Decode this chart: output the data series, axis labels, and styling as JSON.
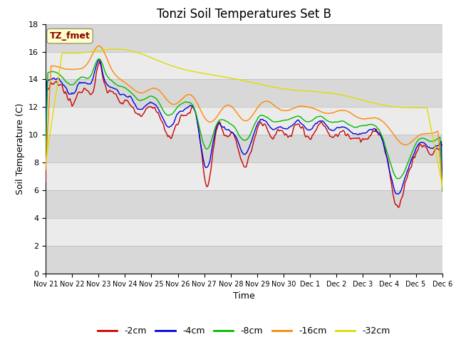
{
  "title": "Tonzi Soil Temperatures Set B",
  "xlabel": "Time",
  "ylabel": "Soil Temperature (C)",
  "ylim": [
    0,
    18
  ],
  "yticks": [
    0,
    2,
    4,
    6,
    8,
    10,
    12,
    14,
    16,
    18
  ],
  "x_labels": [
    "Nov 21",
    "Nov 22",
    "Nov 23",
    "Nov 24",
    "Nov 25",
    "Nov 26",
    "Nov 27",
    "Nov 28",
    "Nov 29",
    "Nov 30",
    "Dec 1",
    "Dec 2",
    "Dec 3",
    "Dec 4",
    "Dec 5",
    "Dec 6"
  ],
  "series_colors": [
    "#cc0000",
    "#0000dd",
    "#00bb00",
    "#ff8800",
    "#dddd00"
  ],
  "series_labels": [
    "-2cm",
    "-4cm",
    "-8cm",
    "-16cm",
    "-32cm"
  ],
  "annotation_text": "TZ_fmet",
  "annotation_box_color": "#ffffcc",
  "annotation_text_color": "#880000",
  "background_color": "#ffffff",
  "band_colors": [
    "#d8d8d8",
    "#ebebeb"
  ],
  "grid_line_color": "#cccccc",
  "title_fontsize": 12,
  "axis_fontsize": 9,
  "tick_fontsize": 8,
  "legend_fontsize": 9
}
